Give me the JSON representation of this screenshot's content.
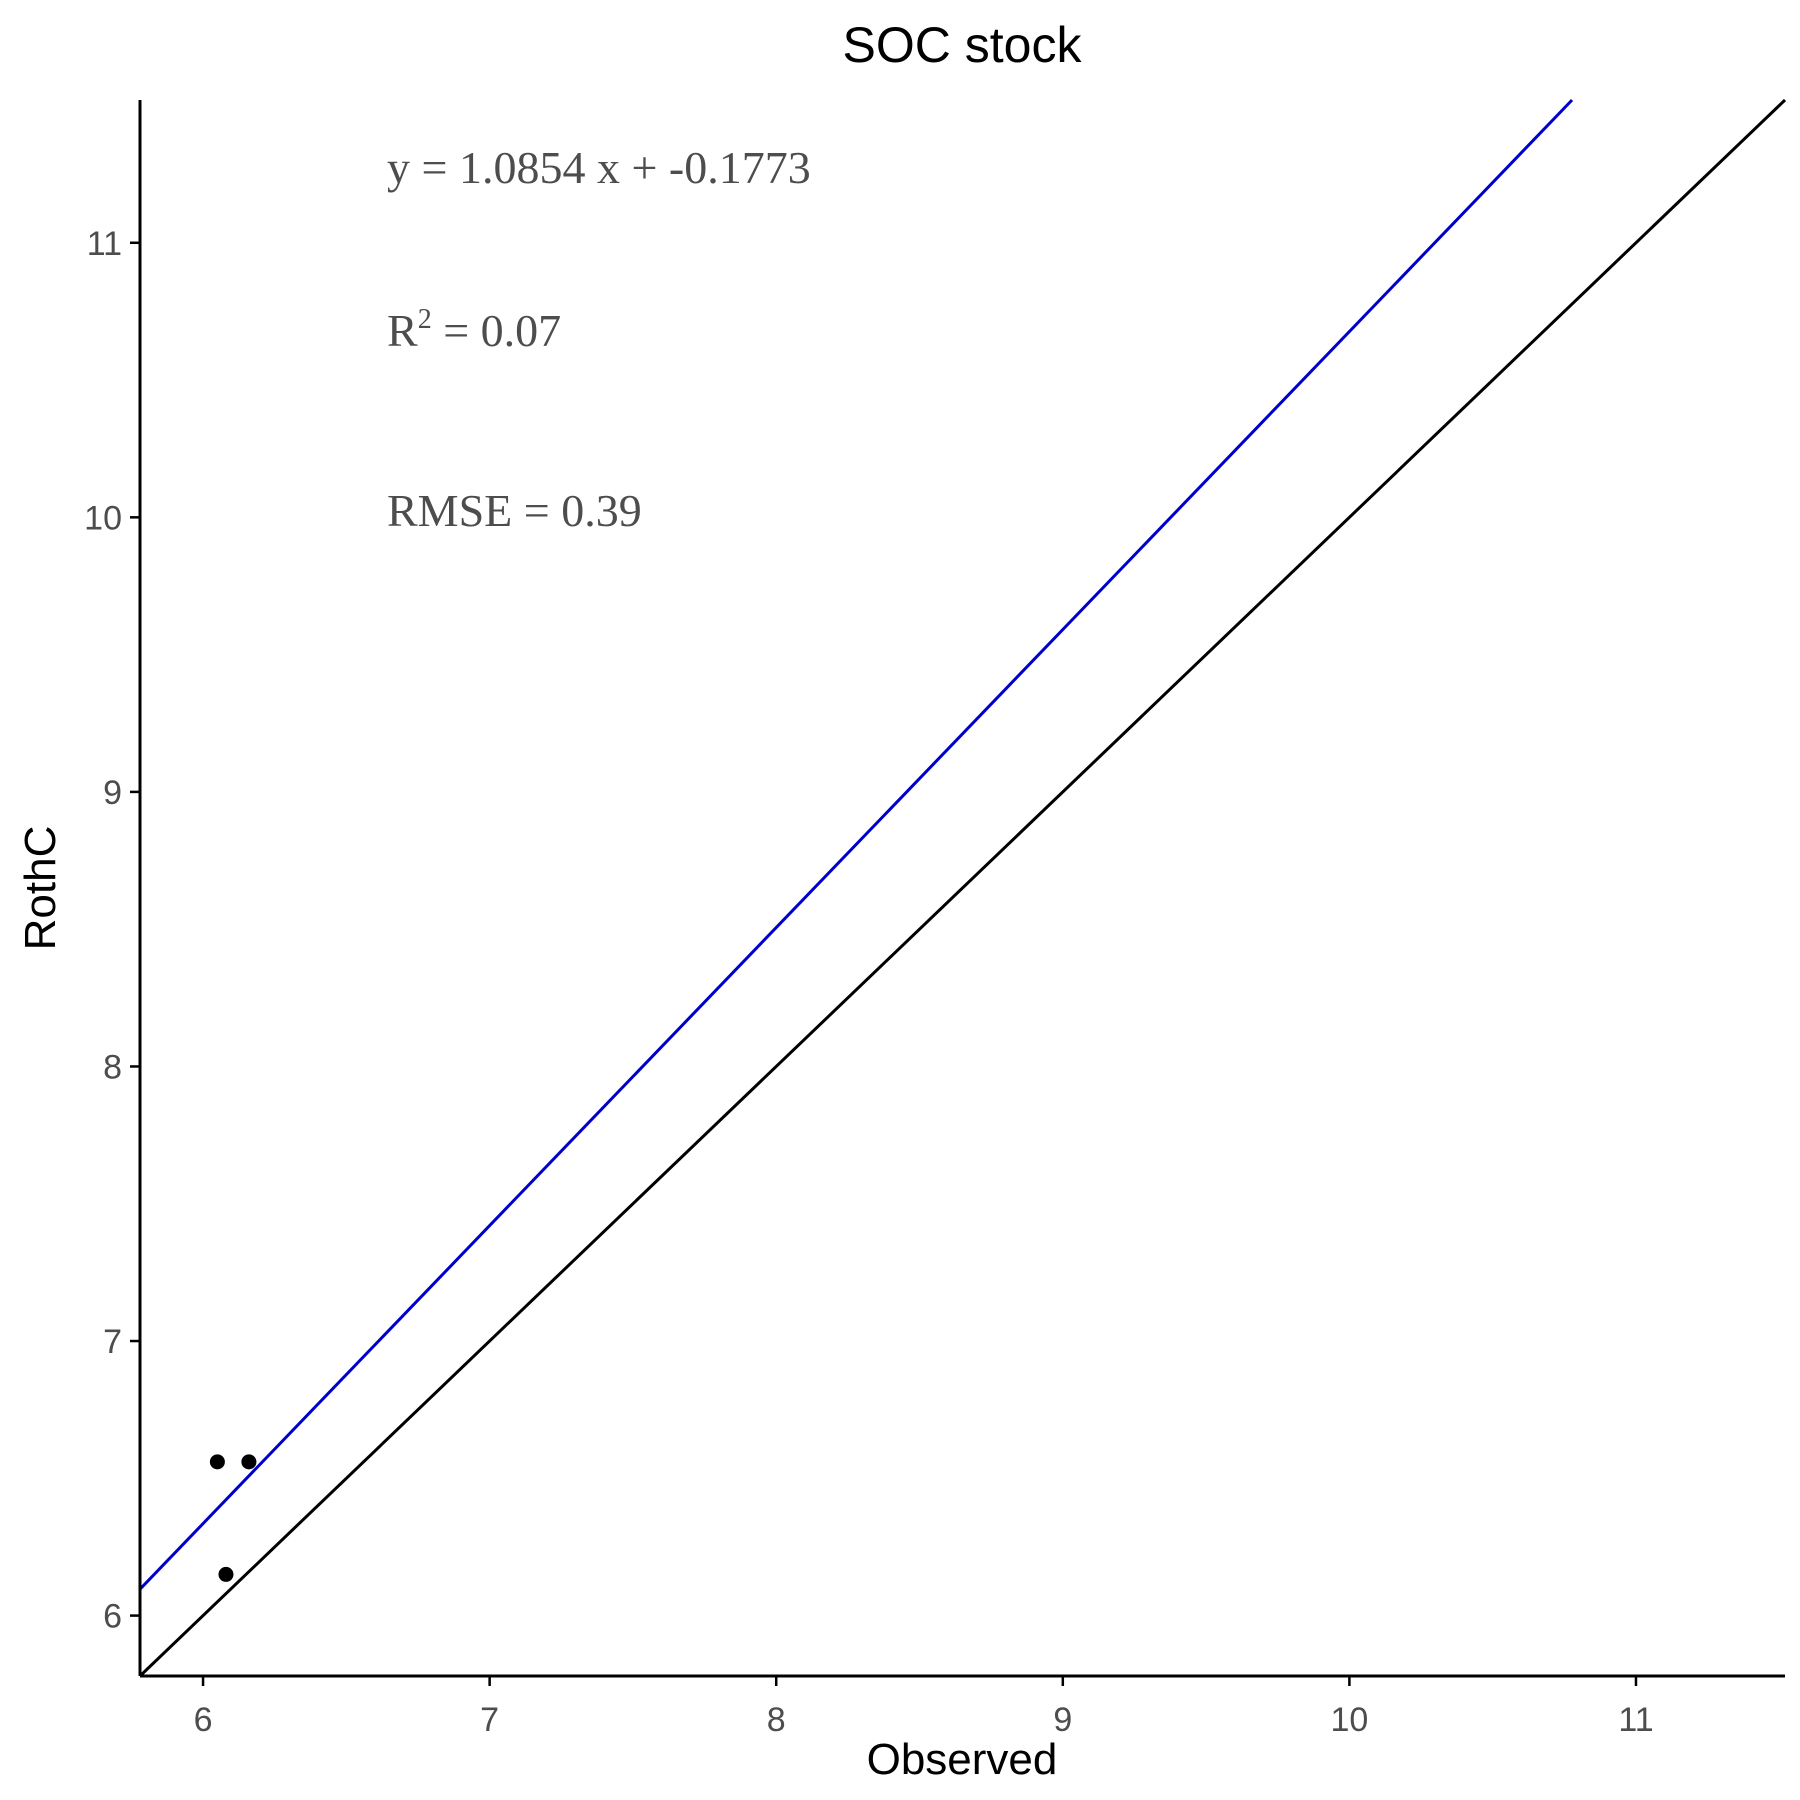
{
  "chart_data": {
    "type": "scatter",
    "title": "SOC stock",
    "xlabel": "Observed",
    "ylabel": "RothC",
    "xlim": [
      5.78,
      11.52
    ],
    "ylim": [
      5.78,
      11.52
    ],
    "x_ticks": [
      6,
      7,
      8,
      9,
      10,
      11
    ],
    "y_ticks": [
      6,
      7,
      8,
      9,
      10,
      11
    ],
    "grid": false,
    "points": [
      {
        "x": 6.05,
        "y": 6.56
      },
      {
        "x": 6.16,
        "y": 6.56
      },
      {
        "x": 6.08,
        "y": 6.15
      }
    ],
    "lines": [
      {
        "kind": "regression",
        "slope": 1.0854,
        "intercept": -0.1773,
        "color": "#0000cc"
      },
      {
        "kind": "identity",
        "slope": 1,
        "intercept": 0,
        "color": "#000000"
      }
    ],
    "annotations": {
      "equation": "y = 1.0854 x +  -0.1773",
      "r2_prefix": "R",
      "r2_sup": "2",
      "r2_value": " = 0.07",
      "rmse": "RMSE = 0.39"
    },
    "point_color": "#000000"
  }
}
